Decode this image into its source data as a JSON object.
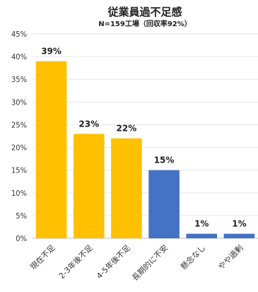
{
  "chart_data": {
    "type": "bar",
    "title": "従業員過不足感",
    "subtitle": "N=159工場（回収率92%）",
    "categories": [
      "現在不足",
      "2-3年後不足",
      "4-5年後不足",
      "長期的に不安",
      "懸念なし",
      "やや過剰"
    ],
    "values": [
      39,
      23,
      22,
      15,
      1,
      1
    ],
    "data_labels": [
      "39%",
      "23%",
      "22%",
      "15%",
      "1%",
      "1%"
    ],
    "colors": [
      "#FFC000",
      "#FFC000",
      "#FFC000",
      "#4472C4",
      "#4472C4",
      "#4472C4"
    ],
    "ylim": [
      0,
      45
    ],
    "yticks": [
      0,
      5,
      10,
      15,
      20,
      25,
      30,
      35,
      40,
      45
    ],
    "ytick_labels": [
      "0%",
      "5%",
      "10%",
      "15%",
      "20%",
      "25%",
      "30%",
      "35%",
      "40%",
      "45%"
    ],
    "grid": true,
    "xlabel": "",
    "ylabel": ""
  }
}
